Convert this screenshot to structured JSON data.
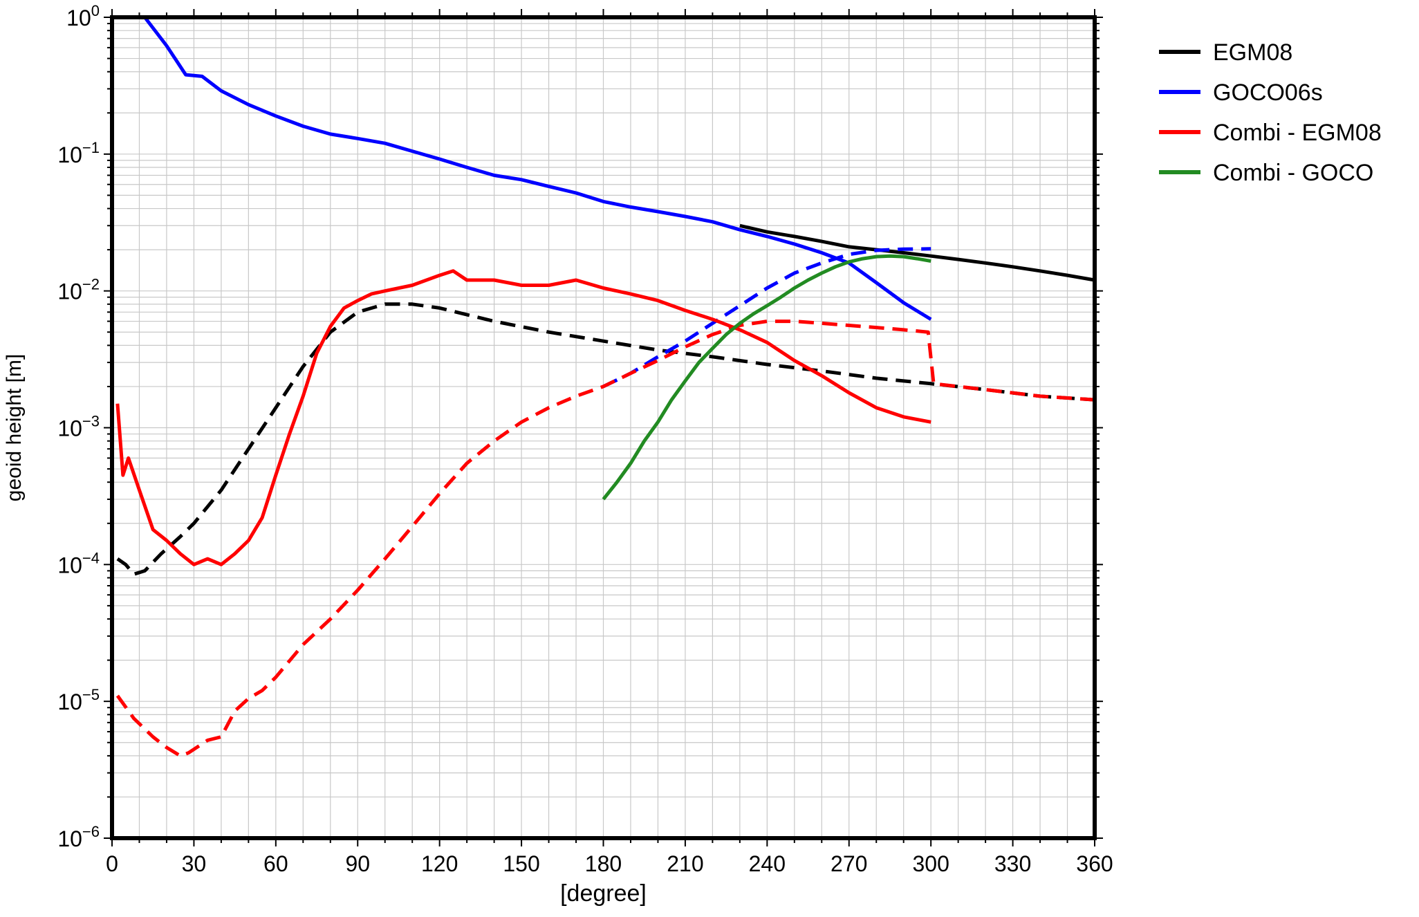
{
  "chart_data": {
    "type": "line",
    "xlabel": "[degree]",
    "ylabel": "geoid height [m]",
    "yscale": "log",
    "xlim": [
      0,
      360
    ],
    "ylim": [
      1e-06,
      1
    ],
    "x_ticks": [
      "0",
      "30",
      "60",
      "90",
      "120",
      "150",
      "180",
      "210",
      "240",
      "270",
      "300",
      "330",
      "360"
    ],
    "y_ticks": [
      {
        "value": 1e-06,
        "base": "10",
        "exp": "−6"
      },
      {
        "value": 1e-05,
        "base": "10",
        "exp": "−5"
      },
      {
        "value": 0.0001,
        "base": "10",
        "exp": "−4"
      },
      {
        "value": 0.001,
        "base": "10",
        "exp": "−3"
      },
      {
        "value": 0.01,
        "base": "10",
        "exp": "−2"
      },
      {
        "value": 0.1,
        "base": "10",
        "exp": "−1"
      },
      {
        "value": 1,
        "base": "10",
        "exp": "0"
      }
    ],
    "grid": true,
    "legend_position": "right",
    "legend": [
      {
        "name": "EGM08",
        "color": "#000000"
      },
      {
        "name": "GOCO06s",
        "color": "#0000ff"
      },
      {
        "name": "Combi - EGM08",
        "color": "#ff0000"
      },
      {
        "name": "Combi - GOCO",
        "color": "#228b22"
      }
    ],
    "series": [
      {
        "legend": "EGM08",
        "style": "solid",
        "color": "#000000",
        "x": [
          230,
          240,
          250,
          260,
          270,
          280,
          290,
          300,
          310,
          320,
          330,
          340,
          350,
          360
        ],
        "y": [
          0.03,
          0.027,
          0.025,
          0.023,
          0.021,
          0.02,
          0.019,
          0.018,
          0.017,
          0.016,
          0.015,
          0.014,
          0.013,
          0.012
        ]
      },
      {
        "legend": "EGM08",
        "style": "dashed",
        "color": "#000000",
        "x": [
          2,
          5,
          8,
          12,
          18,
          25,
          30,
          40,
          50,
          60,
          70,
          80,
          90,
          100,
          110,
          120,
          140,
          160,
          180,
          200,
          220,
          240,
          260,
          280,
          300,
          320,
          340,
          360
        ],
        "y": [
          0.00011,
          0.0001,
          8.5e-05,
          9e-05,
          0.00012,
          0.00016,
          0.0002,
          0.00035,
          0.0007,
          0.0014,
          0.0028,
          0.005,
          0.007,
          0.008,
          0.008,
          0.0075,
          0.006,
          0.005,
          0.0043,
          0.0037,
          0.0033,
          0.0029,
          0.0026,
          0.0023,
          0.0021,
          0.0019,
          0.0017,
          0.0016
        ]
      },
      {
        "legend": "GOCO06s",
        "style": "solid",
        "color": "#0000ff",
        "x": [
          12,
          20,
          27,
          33,
          40,
          50,
          60,
          70,
          80,
          90,
          100,
          110,
          120,
          130,
          140,
          150,
          160,
          170,
          180,
          190,
          200,
          210,
          220,
          230,
          240,
          250,
          260,
          270,
          280,
          290,
          300
        ],
        "y": [
          1.0,
          0.62,
          0.38,
          0.37,
          0.29,
          0.23,
          0.19,
          0.16,
          0.14,
          0.13,
          0.12,
          0.105,
          0.092,
          0.08,
          0.07,
          0.065,
          0.058,
          0.052,
          0.045,
          0.041,
          0.038,
          0.035,
          0.032,
          0.028,
          0.025,
          0.022,
          0.019,
          0.016,
          0.0115,
          0.0082,
          0.0062
        ]
      },
      {
        "legend": "GOCO06s",
        "style": "dashed",
        "color": "#0000ff",
        "x": [
          180,
          190,
          200,
          210,
          220,
          230,
          240,
          250,
          260,
          270,
          280,
          290,
          300
        ],
        "y": [
          0.002,
          0.0025,
          0.0033,
          0.0043,
          0.0058,
          0.0078,
          0.0105,
          0.0135,
          0.016,
          0.0185,
          0.0198,
          0.0202,
          0.0203
        ]
      },
      {
        "legend": "Combi - EGM08",
        "style": "solid",
        "color": "#ff0000",
        "x": [
          2,
          4,
          6,
          10,
          15,
          20,
          25,
          30,
          35,
          40,
          45,
          50,
          55,
          60,
          65,
          70,
          75,
          80,
          85,
          90,
          95,
          100,
          110,
          120,
          125,
          130,
          140,
          150,
          160,
          170,
          180,
          190,
          200,
          210,
          220,
          230,
          240,
          250,
          260,
          270,
          280,
          290,
          300
        ],
        "y": [
          0.0015,
          0.00045,
          0.0006,
          0.00035,
          0.00018,
          0.00015,
          0.00012,
          0.0001,
          0.00011,
          0.0001,
          0.00012,
          0.00015,
          0.00022,
          0.00045,
          0.0009,
          0.0017,
          0.0035,
          0.0055,
          0.0075,
          0.0085,
          0.0095,
          0.01,
          0.011,
          0.013,
          0.014,
          0.012,
          0.012,
          0.011,
          0.011,
          0.012,
          0.0105,
          0.0095,
          0.0085,
          0.0072,
          0.0062,
          0.0052,
          0.0042,
          0.0031,
          0.0024,
          0.0018,
          0.0014,
          0.0012,
          0.0011
        ]
      },
      {
        "legend": "Combi - EGM08",
        "style": "dashed",
        "color": "#ff0000",
        "x": [
          2,
          8,
          15,
          20,
          25,
          28,
          35,
          40,
          45,
          50,
          55,
          60,
          70,
          80,
          90,
          100,
          110,
          120,
          130,
          140,
          150,
          160,
          170,
          180,
          190,
          200,
          210,
          220,
          230,
          240,
          250,
          260,
          270,
          280,
          290,
          299,
          301,
          320,
          340,
          360
        ],
        "y": [
          1.1e-05,
          7.5e-06,
          5.5e-06,
          4.6e-06,
          4e-06,
          4.2e-06,
          5.2e-06,
          5.5e-06,
          8.5e-06,
          1.05e-05,
          1.2e-05,
          1.5e-05,
          2.6e-05,
          4e-05,
          6.5e-05,
          0.00011,
          0.00019,
          0.00033,
          0.00055,
          0.0008,
          0.0011,
          0.0014,
          0.0017,
          0.002,
          0.0025,
          0.0031,
          0.0039,
          0.0048,
          0.0056,
          0.006,
          0.006,
          0.0058,
          0.0056,
          0.0054,
          0.0052,
          0.005,
          0.0021,
          0.0019,
          0.0017,
          0.0016
        ]
      },
      {
        "legend": "Combi - GOCO",
        "style": "solid",
        "color": "#228b22",
        "x": [
          180,
          185,
          190,
          195,
          200,
          205,
          210,
          215,
          220,
          225,
          230,
          235,
          240,
          245,
          250,
          255,
          260,
          265,
          270,
          275,
          280,
          285,
          290,
          295,
          300
        ],
        "y": [
          0.0003,
          0.0004,
          0.00055,
          0.0008,
          0.0011,
          0.0016,
          0.0022,
          0.003,
          0.0038,
          0.0048,
          0.0058,
          0.0068,
          0.0078,
          0.009,
          0.0105,
          0.012,
          0.0135,
          0.015,
          0.0163,
          0.0172,
          0.0178,
          0.018,
          0.0178,
          0.0172,
          0.0165
        ]
      }
    ]
  }
}
